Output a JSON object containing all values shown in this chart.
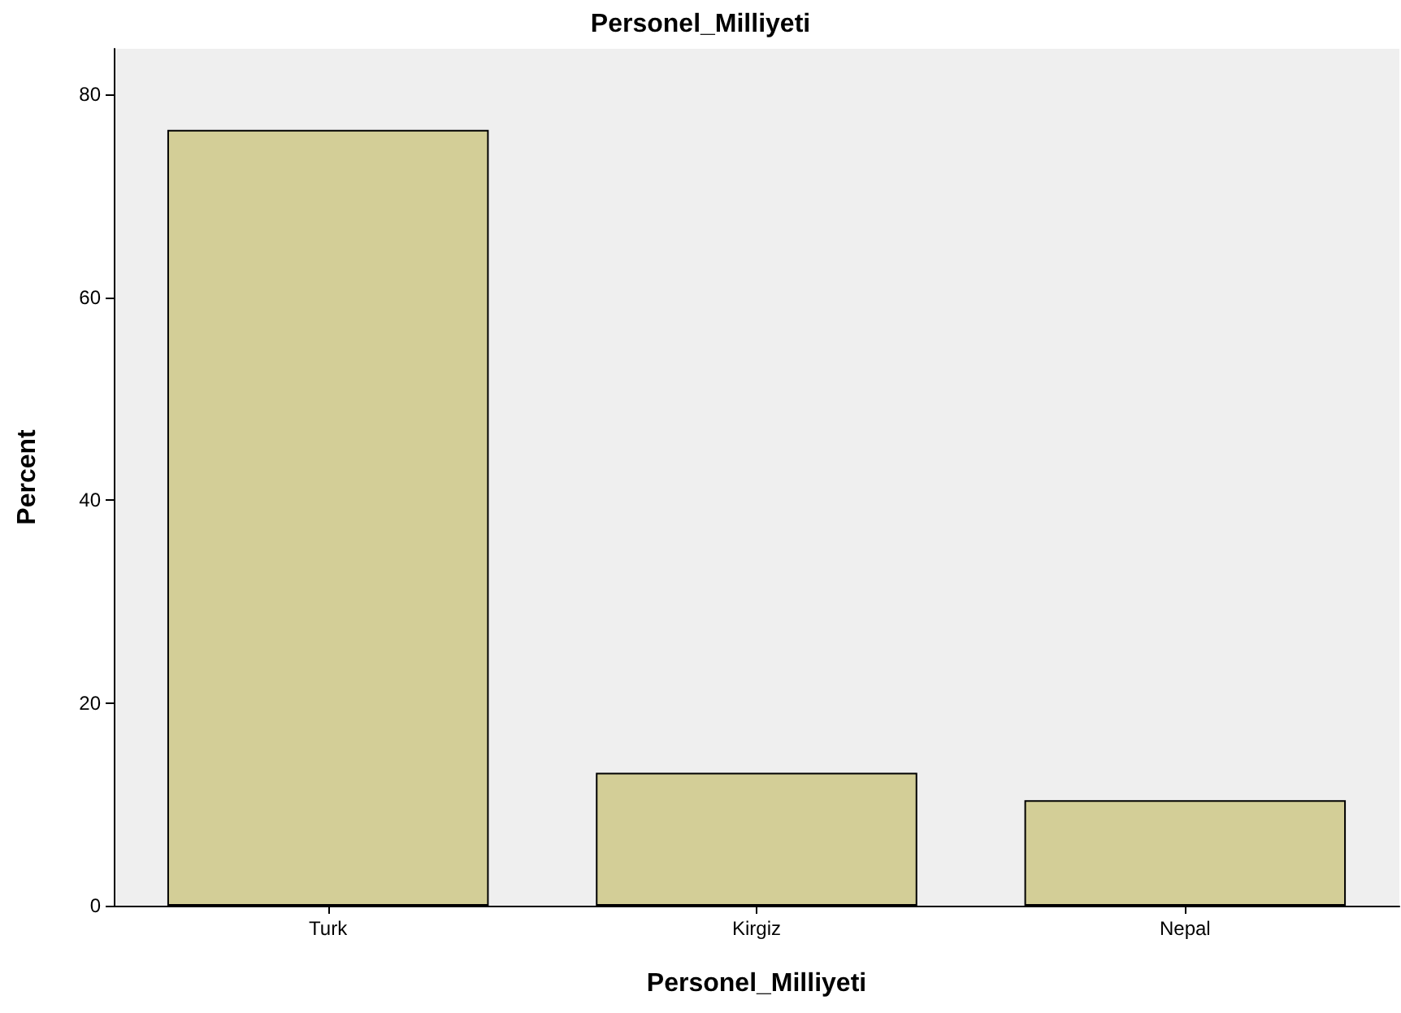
{
  "chart_data": {
    "type": "bar",
    "title": "Personel_Milliyeti",
    "xlabel": "Personel_Milliyeti",
    "ylabel": "Percent",
    "categories": [
      "Turk",
      "Kirgiz",
      "Nepal"
    ],
    "values": [
      76.5,
      13.1,
      10.4
    ],
    "color": "#d3ce97",
    "ylim": [
      0,
      84.5
    ],
    "yticks": [
      0,
      20,
      40,
      60,
      80
    ],
    "grid": false
  }
}
